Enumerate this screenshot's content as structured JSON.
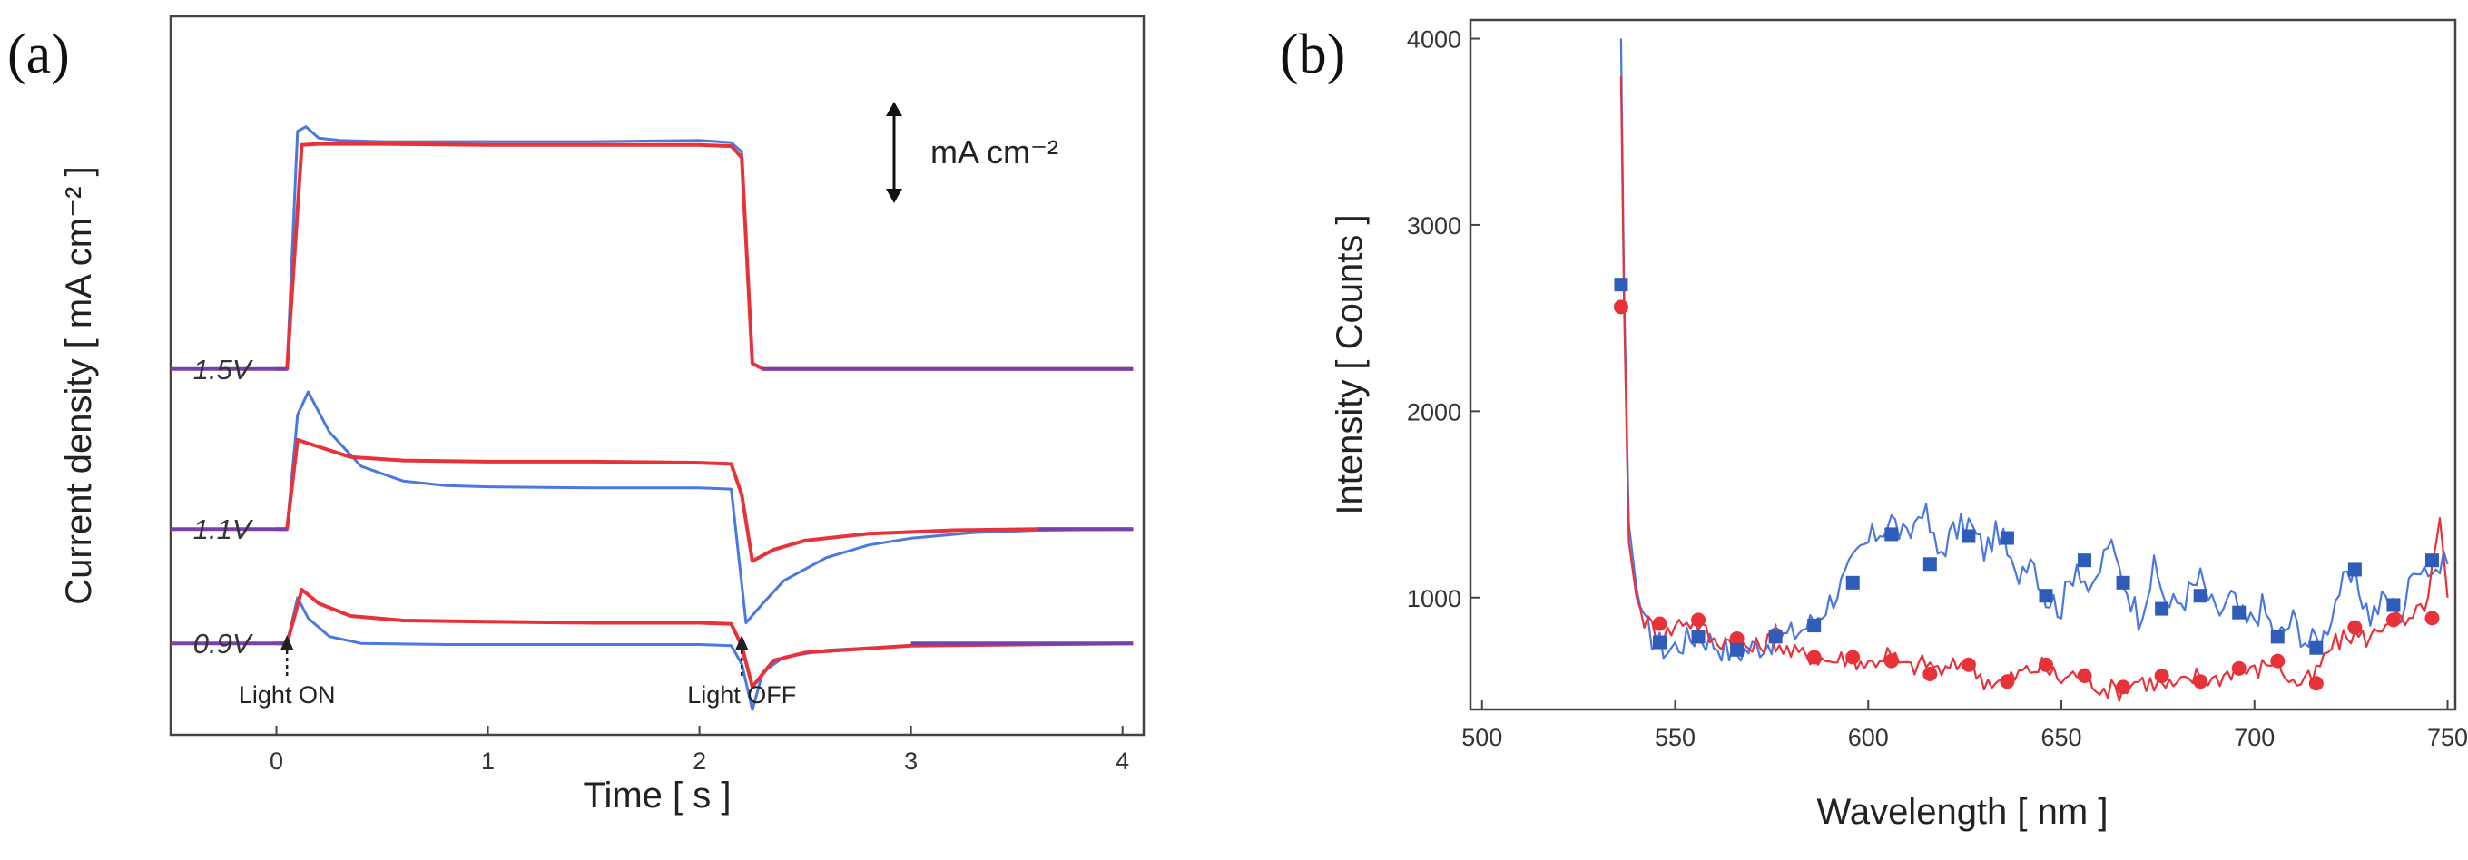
{
  "panels": {
    "a": {
      "label": "(a)",
      "xlabel": "Time [ s ]",
      "ylabel": "Current density [ mA cm⁻² ]",
      "scale_bar_label": "mA cm⁻²",
      "light_on": "Light ON",
      "light_off": "Light OFF",
      "voltage_labels": [
        "1.5V",
        "1.1V",
        "0.9V"
      ]
    },
    "b": {
      "label": "(b)",
      "xlabel": "Wavelength [ nm ]",
      "ylabel": "Intensity [ Counts ]"
    }
  },
  "colors": {
    "red": "#e8323a",
    "blue": "#4a78e0",
    "purple": "#7a3fa8",
    "blue_marker": "#2e5cb8"
  },
  "chart_data": [
    {
      "type": "line",
      "panel": "a",
      "xlabel": "Time [ s ]",
      "ylabel": "Current density [ mA cm⁻² ]",
      "xlim": [
        -0.5,
        4.1
      ],
      "xticks": [
        0,
        1,
        2,
        3,
        4
      ],
      "light_on_time": 0.05,
      "light_off_time": 2.2,
      "groups": [
        {
          "label": "1.5V",
          "baseline": 3.2,
          "series": [
            {
              "color": "blue",
              "x": [
                0,
                0.05,
                0.1,
                0.14,
                0.2,
                0.3,
                0.5,
                1.0,
                1.5,
                2.0,
                2.15,
                2.2,
                2.25,
                2.3,
                3.0,
                4.05
              ],
              "y": [
                3.2,
                3.2,
                5.28,
                5.32,
                5.22,
                5.2,
                5.19,
                5.19,
                5.19,
                5.2,
                5.18,
                5.1,
                3.25,
                3.2,
                3.2,
                3.2
              ]
            },
            {
              "color": "red",
              "x": [
                0,
                0.05,
                0.12,
                0.2,
                0.5,
                1.0,
                1.5,
                2.0,
                2.15,
                2.2,
                2.25,
                2.3,
                3.0,
                4.05
              ],
              "y": [
                3.2,
                3.2,
                5.16,
                5.17,
                5.17,
                5.16,
                5.16,
                5.16,
                5.15,
                5.05,
                3.25,
                3.2,
                3.2,
                3.2
              ]
            }
          ]
        },
        {
          "label": "1.1V",
          "baseline": 1.8,
          "series": [
            {
              "color": "blue",
              "x": [
                0,
                0.05,
                0.1,
                0.15,
                0.25,
                0.4,
                0.6,
                0.8,
                1.0,
                1.5,
                2.0,
                2.15,
                2.22,
                2.3,
                2.4,
                2.6,
                2.8,
                3.0,
                3.3,
                3.6,
                4.05
              ],
              "y": [
                1.8,
                1.8,
                2.8,
                3.0,
                2.65,
                2.35,
                2.22,
                2.18,
                2.17,
                2.16,
                2.16,
                2.15,
                0.98,
                1.15,
                1.35,
                1.55,
                1.66,
                1.72,
                1.77,
                1.79,
                1.8
              ]
            },
            {
              "color": "red",
              "x": [
                0,
                0.05,
                0.1,
                0.2,
                0.35,
                0.6,
                1.0,
                1.5,
                2.0,
                2.15,
                2.2,
                2.25,
                2.35,
                2.5,
                2.8,
                3.2,
                3.6,
                4.05
              ],
              "y": [
                1.8,
                1.8,
                2.58,
                2.52,
                2.43,
                2.4,
                2.39,
                2.39,
                2.38,
                2.37,
                2.1,
                1.52,
                1.62,
                1.7,
                1.76,
                1.79,
                1.8,
                1.8
              ]
            }
          ]
        },
        {
          "label": "0.9V",
          "baseline": 0.8,
          "series": [
            {
              "color": "blue",
              "x": [
                0,
                0.05,
                0.1,
                0.15,
                0.25,
                0.4,
                0.8,
                1.5,
                2.0,
                2.15,
                2.2,
                2.25,
                2.3,
                2.4,
                2.6,
                3.0,
                4.05
              ],
              "y": [
                0.8,
                0.8,
                1.2,
                1.02,
                0.86,
                0.8,
                0.79,
                0.79,
                0.79,
                0.78,
                0.62,
                0.22,
                0.55,
                0.68,
                0.74,
                0.78,
                0.8
              ]
            },
            {
              "color": "red",
              "x": [
                0,
                0.05,
                0.12,
                0.2,
                0.35,
                0.6,
                1.0,
                1.5,
                2.0,
                2.15,
                2.2,
                2.25,
                2.35,
                2.5,
                3.0,
                4.05
              ],
              "y": [
                0.8,
                0.8,
                1.27,
                1.15,
                1.04,
                1.0,
                0.99,
                0.98,
                0.98,
                0.97,
                0.78,
                0.42,
                0.65,
                0.72,
                0.78,
                0.8
              ]
            }
          ]
        }
      ]
    },
    {
      "type": "line",
      "panel": "b",
      "xlabel": "Wavelength [ nm ]",
      "ylabel": "Intensity [ Counts ]",
      "xlim": [
        497,
        752
      ],
      "ylim": [
        400,
        4100
      ],
      "xticks": [
        500,
        550,
        600,
        650,
        700,
        750
      ],
      "yticks": [
        1000,
        2000,
        3000,
        4000
      ],
      "series": [
        {
          "color": "blue",
          "marker": "square",
          "x": [
            536,
            536.8,
            538,
            540,
            542,
            545,
            548,
            552,
            556,
            560,
            565,
            570,
            575,
            580,
            585,
            590,
            594,
            598,
            602,
            606,
            610,
            614,
            618,
            622,
            626,
            630,
            634,
            638,
            642,
            646,
            650,
            654,
            658,
            662,
            666,
            670,
            674,
            678,
            682,
            686,
            690,
            694,
            698,
            702,
            706,
            710,
            714,
            718,
            722,
            726,
            730,
            734,
            738,
            742,
            746,
            750
          ],
          "y": [
            4000,
            2650,
            1400,
            1050,
            850,
            760,
            720,
            760,
            800,
            760,
            700,
            730,
            770,
            800,
            860,
            980,
            1100,
            1250,
            1340,
            1420,
            1300,
            1500,
            1230,
            1350,
            1400,
            1250,
            1360,
            1100,
            1250,
            1000,
            950,
            1200,
            1000,
            1300,
            1100,
            900,
            1150,
            950,
            1000,
            1100,
            900,
            1000,
            850,
            950,
            780,
            880,
            750,
            800,
            1050,
            1100,
            900,
            1000,
            900,
            1200,
            1150,
            1180
          ]
        },
        {
          "color": "red",
          "marker": "circle",
          "x": [
            536,
            536.8,
            538,
            540,
            542,
            545,
            548,
            552,
            556,
            560,
            565,
            570,
            575,
            580,
            585,
            590,
            595,
            600,
            605,
            610,
            615,
            620,
            625,
            630,
            635,
            640,
            645,
            650,
            655,
            660,
            665,
            670,
            675,
            680,
            685,
            690,
            695,
            700,
            705,
            710,
            715,
            720,
            725,
            730,
            735,
            740,
            745,
            748,
            750
          ],
          "y": [
            3800,
            2550,
            1300,
            1000,
            880,
            830,
            810,
            880,
            860,
            760,
            780,
            720,
            780,
            700,
            690,
            660,
            680,
            640,
            700,
            620,
            650,
            600,
            660,
            560,
            540,
            600,
            630,
            560,
            600,
            520,
            500,
            560,
            530,
            520,
            580,
            560,
            620,
            600,
            670,
            540,
            560,
            740,
            800,
            780,
            900,
            850,
            1000,
            1400,
            1000
          ]
        }
      ],
      "markers": {
        "blue": {
          "x": [
            536,
            546,
            556,
            566,
            576,
            586,
            596,
            606,
            616,
            626,
            636,
            646,
            656,
            666,
            676,
            686,
            696,
            706,
            716,
            726,
            736,
            746
          ],
          "y": [
            2680,
            760,
            790,
            720,
            790,
            850,
            1080,
            1340,
            1180,
            1330,
            1320,
            1010,
            1200,
            1080,
            940,
            1010,
            920,
            790,
            730,
            1150,
            960,
            1200
          ]
        },
        "red": {
          "x": [
            536,
            546,
            556,
            566,
            576,
            586,
            596,
            606,
            616,
            626,
            636,
            646,
            656,
            666,
            676,
            686,
            696,
            706,
            716,
            726,
            736,
            746
          ],
          "y": [
            2560,
            860,
            880,
            780,
            800,
            680,
            680,
            660,
            590,
            640,
            550,
            640,
            580,
            520,
            580,
            550,
            620,
            660,
            540,
            840,
            880,
            890
          ]
        }
      }
    }
  ]
}
